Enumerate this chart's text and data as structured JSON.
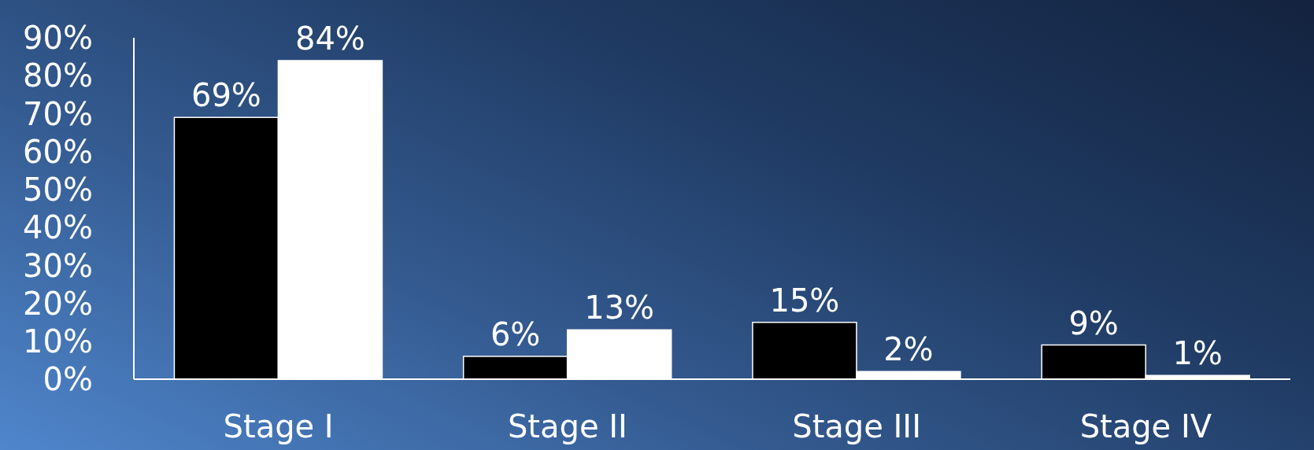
{
  "chart_data": {
    "type": "bar",
    "categories": [
      "Stage I",
      "Stage II",
      "Stage III",
      "Stage IV"
    ],
    "series": [
      {
        "color": "#000000",
        "values": [
          69,
          6,
          15,
          9
        ],
        "value_labels": [
          "69%",
          "6%",
          "15%",
          "9%"
        ]
      },
      {
        "color": "#ffffff",
        "values": [
          84,
          13,
          2,
          1
        ],
        "value_labels": [
          "84%",
          "13%",
          "2%",
          "1%"
        ]
      }
    ],
    "ylim": [
      0,
      90
    ],
    "yticks": [
      {
        "value": 0,
        "label": "0%"
      },
      {
        "value": 10,
        "label": "10%"
      },
      {
        "value": 20,
        "label": "20%"
      },
      {
        "value": 30,
        "label": "30%"
      },
      {
        "value": 40,
        "label": "40%"
      },
      {
        "value": 50,
        "label": "50%"
      },
      {
        "value": 60,
        "label": "60%"
      },
      {
        "value": 70,
        "label": "70%"
      },
      {
        "value": 80,
        "label": "80%"
      },
      {
        "value": 90,
        "label": "90%"
      }
    ],
    "grid": false,
    "legend": false
  }
}
